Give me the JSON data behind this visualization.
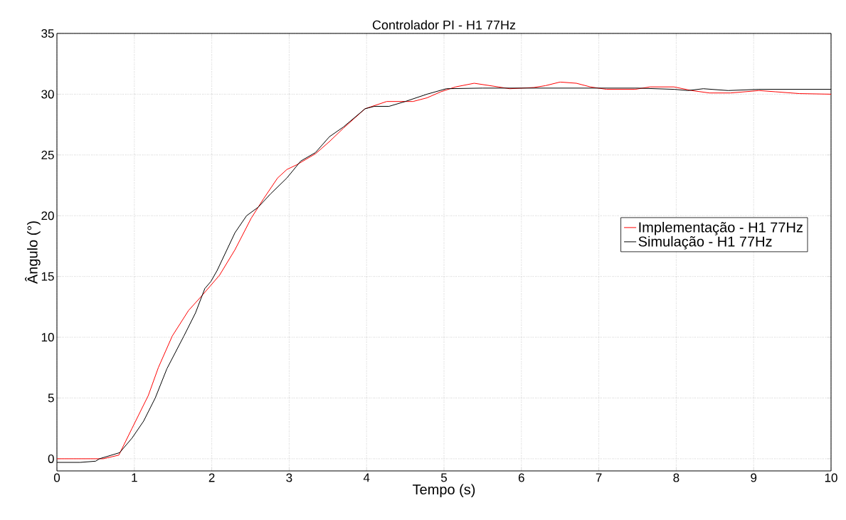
{
  "chart_data": {
    "type": "line",
    "title": "Controlador PI - H1 77Hz",
    "xlabel": "Tempo (s)",
    "ylabel": "Ângulo (°)",
    "xlim": [
      0,
      10
    ],
    "ylim": [
      -1,
      35
    ],
    "xticks": [
      0,
      1,
      2,
      3,
      4,
      5,
      6,
      7,
      8,
      9,
      10
    ],
    "yticks": [
      0,
      5,
      10,
      15,
      20,
      25,
      30,
      35
    ],
    "grid": true,
    "legend": "right",
    "marker": "none",
    "line_style": "solid",
    "series": [
      {
        "name": "Implementação - H1 77Hz",
        "color": "#ff0000",
        "x": [
          0,
          0.3,
          0.6,
          0.8,
          0.97,
          1.18,
          1.31,
          1.49,
          1.7,
          1.87,
          2.1,
          2.3,
          2.51,
          2.67,
          2.85,
          2.97,
          3.1,
          3.34,
          3.52,
          3.7,
          3.98,
          4.26,
          4.6,
          4.78,
          4.96,
          5.15,
          5.39,
          5.7,
          5.85,
          6.16,
          6.31,
          6.5,
          6.71,
          6.89,
          7.1,
          7.47,
          7.66,
          7.97,
          8.2,
          8.43,
          8.7,
          9.07,
          9.28,
          9.59,
          10
        ],
        "values": [
          0,
          0,
          0,
          0.3,
          2.5,
          5.2,
          7.5,
          10.1,
          12.2,
          13.4,
          15.1,
          17.2,
          19.8,
          21.4,
          23.1,
          23.8,
          24.2,
          25.1,
          26.1,
          27.2,
          28.8,
          29.4,
          29.4,
          29.7,
          30.2,
          30.6,
          30.9,
          30.6,
          30.45,
          30.55,
          30.7,
          31.0,
          30.9,
          30.6,
          30.4,
          30.4,
          30.6,
          30.6,
          30.3,
          30.1,
          30.1,
          30.3,
          30.2,
          30.05,
          30.0
        ]
      },
      {
        "name": "Simulação - H1 77Hz",
        "color": "#000000",
        "x": [
          0,
          0.3,
          0.5,
          0.55,
          0.81,
          0.97,
          1.12,
          1.27,
          1.42,
          1.64,
          1.79,
          1.91,
          1.99,
          2.07,
          2.3,
          2.45,
          2.6,
          2.76,
          2.97,
          3.15,
          3.34,
          3.52,
          3.7,
          3.98,
          4.1,
          4.29,
          4.5,
          4.78,
          5.03,
          5.5,
          6.0,
          6.5,
          7.0,
          7.5,
          7.97,
          8.15,
          8.35,
          8.67,
          9.07,
          10
        ],
        "values": [
          -0.3,
          -0.3,
          -0.2,
          0,
          0.5,
          1.7,
          3.1,
          5.0,
          7.4,
          10.1,
          12.0,
          14.0,
          14.6,
          15.5,
          18.6,
          20.0,
          20.7,
          21.8,
          23.1,
          24.5,
          25.2,
          26.5,
          27.3,
          28.8,
          29.0,
          29.0,
          29.4,
          30.0,
          30.45,
          30.5,
          30.5,
          30.5,
          30.5,
          30.5,
          30.4,
          30.3,
          30.45,
          30.3,
          30.4,
          30.4
        ]
      }
    ]
  }
}
